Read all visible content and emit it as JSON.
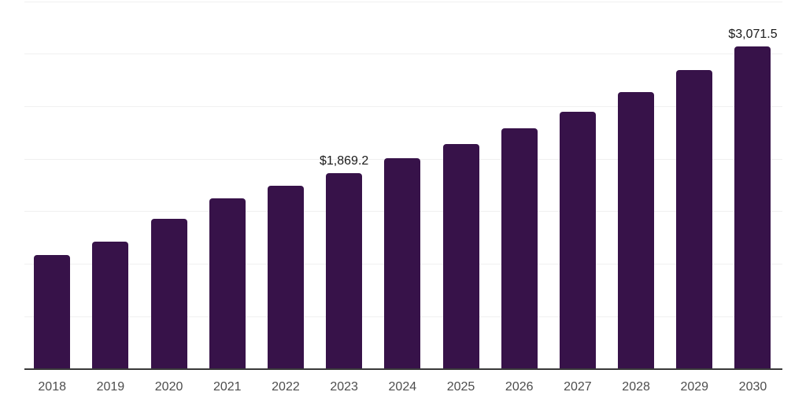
{
  "chart_data": {
    "type": "bar",
    "title": "",
    "xlabel": "",
    "ylabel": "",
    "categories": [
      "2018",
      "2019",
      "2020",
      "2021",
      "2022",
      "2023",
      "2024",
      "2025",
      "2026",
      "2027",
      "2028",
      "2029",
      "2030"
    ],
    "values": [
      1090,
      1215,
      1430,
      1630,
      1750,
      1869.2,
      2005,
      2140,
      2290,
      2450,
      2640,
      2850,
      3071.5
    ],
    "data_labels": [
      {
        "category": "2023",
        "text": "$1,869.2"
      },
      {
        "category": "2030",
        "text": "$3,071.5"
      }
    ],
    "ylim": [
      0,
      3500
    ],
    "gridline_interval": 500,
    "grid": "horizontal-only",
    "y_axis_tick_labels_visible": false,
    "legend": "none",
    "colors": {
      "bar": "#371249",
      "axis_line": "#3a3a3a",
      "gridline": "#f0f0f0",
      "tick_label": "#4d4d4d",
      "data_label": "#1a1a1a",
      "background": "#ffffff"
    }
  }
}
